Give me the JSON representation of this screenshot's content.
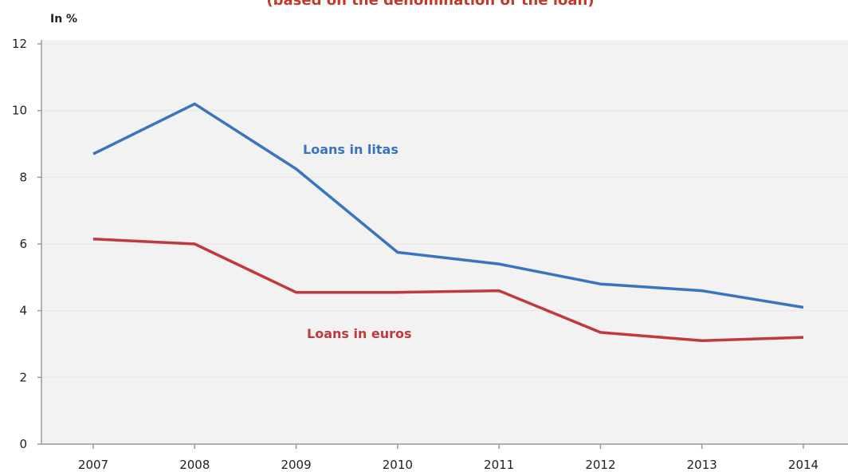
{
  "chart_data": {
    "type": "line",
    "subtitle": "(based on the denomination of the loan)",
    "ylabel": "In %",
    "xlabel": "",
    "x": [
      "2007",
      "2008",
      "2009",
      "2010",
      "2011",
      "2012",
      "2013",
      "2014"
    ],
    "ylim": [
      0,
      12
    ],
    "yticks": [
      0,
      2,
      4,
      6,
      8,
      10,
      12
    ],
    "grid": true,
    "series": [
      {
        "name": "Loans in litas",
        "values": [
          8.7,
          10.2,
          8.25,
          5.75,
          5.4,
          4.8,
          4.6,
          4.1
        ],
        "color": "#3a74c0"
      },
      {
        "name": "Loans in euros",
        "values": [
          6.15,
          6.0,
          4.55,
          4.55,
          4.6,
          3.35,
          3.1,
          3.2
        ],
        "color": "#c0393b"
      }
    ]
  },
  "colors": {
    "plot_background": "#f2f2f2",
    "axis": "#999999",
    "grid": "#e6e6e6"
  }
}
